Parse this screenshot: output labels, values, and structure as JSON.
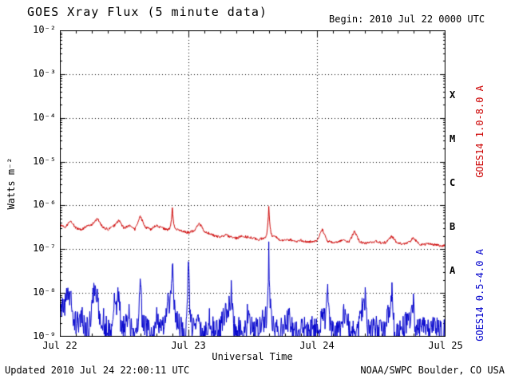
{
  "window": {
    "background": "#ffffff"
  },
  "header": {
    "title": "GOES Xray Flux (5 minute data)",
    "begin_label": "Begin:  2010 Jul 22 0000 UTC"
  },
  "footer": {
    "updated": "Updated 2010 Jul 24 22:00:11 UTC",
    "credit": "NOAA/SWPC Boulder, CO USA"
  },
  "chart_data": {
    "type": "line",
    "title": "GOES Xray Flux (5 minute data)",
    "xlabel": "Universal Time",
    "ylabel": "Watts m⁻²",
    "grid": "dotted",
    "axis_color": "#000000",
    "x_ticks": [
      "Jul 22",
      "Jul 23",
      "Jul 24",
      "Jul 25"
    ],
    "x_tick_hours": [
      0,
      24,
      48,
      72
    ],
    "x_range_hours": [
      0,
      72
    ],
    "y_log_range": [
      -9,
      -2
    ],
    "y_tick_labels": [
      "10⁻²",
      "10⁻³",
      "10⁻⁴",
      "10⁻⁵",
      "10⁻⁶",
      "10⁻⁷",
      "10⁻⁸",
      "10⁻⁹"
    ],
    "flare_classes": [
      {
        "label": "X",
        "log_mid": -3.5
      },
      {
        "label": "M",
        "log_mid": -4.5
      },
      {
        "label": "C",
        "log_mid": -5.5
      },
      {
        "label": "B",
        "log_mid": -6.5
      },
      {
        "label": "A",
        "log_mid": -7.5
      }
    ],
    "sample_interval_hours": 1,
    "series": [
      {
        "name": "GOES14 1.0-8.0 A",
        "color": "#cc0000",
        "noise_log": 0.03,
        "log10_values": [
          -6.45,
          -6.5,
          -6.35,
          -6.52,
          -6.55,
          -6.48,
          -6.44,
          -6.3,
          -6.5,
          -6.55,
          -6.48,
          -6.35,
          -6.52,
          -6.46,
          -6.55,
          -6.25,
          -6.5,
          -6.55,
          -6.45,
          -6.52,
          -6.55,
          -6.05,
          -6.55,
          -6.6,
          -6.62,
          -6.58,
          -6.4,
          -6.6,
          -6.65,
          -6.7,
          -6.72,
          -6.68,
          -6.72,
          -6.75,
          -6.7,
          -6.72,
          -6.75,
          -6.78,
          -6.75,
          -6.02,
          -6.7,
          -6.78,
          -6.8,
          -6.78,
          -6.82,
          -6.8,
          -6.84,
          -6.82,
          -6.8,
          -6.55,
          -6.82,
          -6.85,
          -6.82,
          -6.8,
          -6.84,
          -6.6,
          -6.84,
          -6.86,
          -6.84,
          -6.82,
          -6.86,
          -6.84,
          -6.7,
          -6.86,
          -6.88,
          -6.86,
          -6.75,
          -6.88,
          -6.9,
          -6.88,
          -6.9,
          -6.92,
          -6.92
        ]
      },
      {
        "name": "GOES14 0.5-4.0 A",
        "color": "#0000cc",
        "noise_log": 0.3,
        "log10_values": [
          -8.5,
          -8.2,
          -8.0,
          -8.7,
          -8.3,
          -8.8,
          -8.1,
          -7.9,
          -8.6,
          -8.9,
          -8.3,
          -7.8,
          -8.8,
          -8.5,
          -8.9,
          -7.6,
          -8.7,
          -8.9,
          -8.4,
          -8.8,
          -8.2,
          -7.1,
          -8.6,
          -8.9,
          -7.3,
          -8.8,
          -8.5,
          -8.9,
          -8.6,
          -8.9,
          -8.7,
          -8.4,
          -7.9,
          -8.8,
          -8.9,
          -8.5,
          -8.8,
          -8.9,
          -8.6,
          -7.05,
          -8.7,
          -8.9,
          -8.8,
          -8.5,
          -8.9,
          -8.7,
          -8.9,
          -8.8,
          -8.9,
          -8.6,
          -7.9,
          -8.8,
          -8.9,
          -8.5,
          -8.8,
          -8.9,
          -8.4,
          -8.0,
          -8.9,
          -8.7,
          -8.9,
          -8.5,
          -7.8,
          -8.9,
          -8.8,
          -8.6,
          -8.2,
          -8.9,
          -8.7,
          -8.9,
          -8.8,
          -8.9,
          -8.9
        ]
      }
    ]
  }
}
